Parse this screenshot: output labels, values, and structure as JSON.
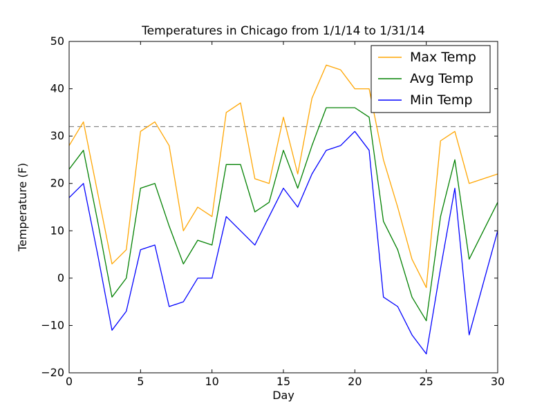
{
  "figure": {
    "title": "Temperatures in Chicago from 1/1/14 to 1/31/14",
    "background": "#ffffff"
  },
  "chart_data": {
    "type": "line",
    "title": "Temperatures in Chicago from 1/1/14 to 1/31/14",
    "xlabel": "Day",
    "ylabel": "Temperature (F)",
    "xlim": [
      0,
      30
    ],
    "ylim": [
      -20,
      50
    ],
    "xticks": [
      0,
      5,
      10,
      15,
      20,
      25,
      30
    ],
    "yticks": [
      -20,
      -10,
      0,
      10,
      20,
      30,
      40,
      50
    ],
    "grid": false,
    "legend_position": "upper right",
    "x": [
      0,
      1,
      2,
      3,
      4,
      5,
      6,
      7,
      8,
      9,
      10,
      11,
      12,
      13,
      14,
      15,
      16,
      17,
      18,
      19,
      20,
      21,
      22,
      23,
      24,
      25,
      26,
      27,
      28,
      29,
      30
    ],
    "series": [
      {
        "name": "Max Temp",
        "color": "#FFA500",
        "values": [
          28,
          33,
          18,
          3,
          6,
          31,
          33,
          28,
          10,
          15,
          13,
          35,
          37,
          21,
          20,
          34,
          22,
          38,
          45,
          44,
          40,
          40,
          25,
          15,
          4,
          -2,
          29,
          31,
          20,
          21,
          22
        ]
      },
      {
        "name": "Avg Temp",
        "color": "#008000",
        "values": [
          23,
          27,
          12,
          -4,
          0,
          19,
          20,
          11,
          3,
          8,
          7,
          24,
          24,
          14,
          16,
          27,
          19,
          28,
          36,
          36,
          36,
          34,
          12,
          6,
          -4,
          -9,
          13,
          25,
          4,
          10,
          16
        ]
      },
      {
        "name": "Min Temp",
        "color": "#0000FF",
        "values": [
          17,
          20,
          5,
          -11,
          -7,
          6,
          7,
          -6,
          -5,
          0,
          0,
          13,
          10,
          7,
          13,
          19,
          15,
          22,
          27,
          28,
          31,
          27,
          -4,
          -6,
          -12,
          -16,
          2,
          19,
          -12,
          -1,
          10
        ]
      }
    ],
    "reference_line": {
      "y": 32,
      "style": "dashed",
      "color": "#808080"
    }
  },
  "legend": {
    "entries": [
      {
        "label": "Max Temp",
        "color": "#FFA500"
      },
      {
        "label": "Avg Temp",
        "color": "#008000"
      },
      {
        "label": "Min Temp",
        "color": "#0000FF"
      }
    ]
  }
}
